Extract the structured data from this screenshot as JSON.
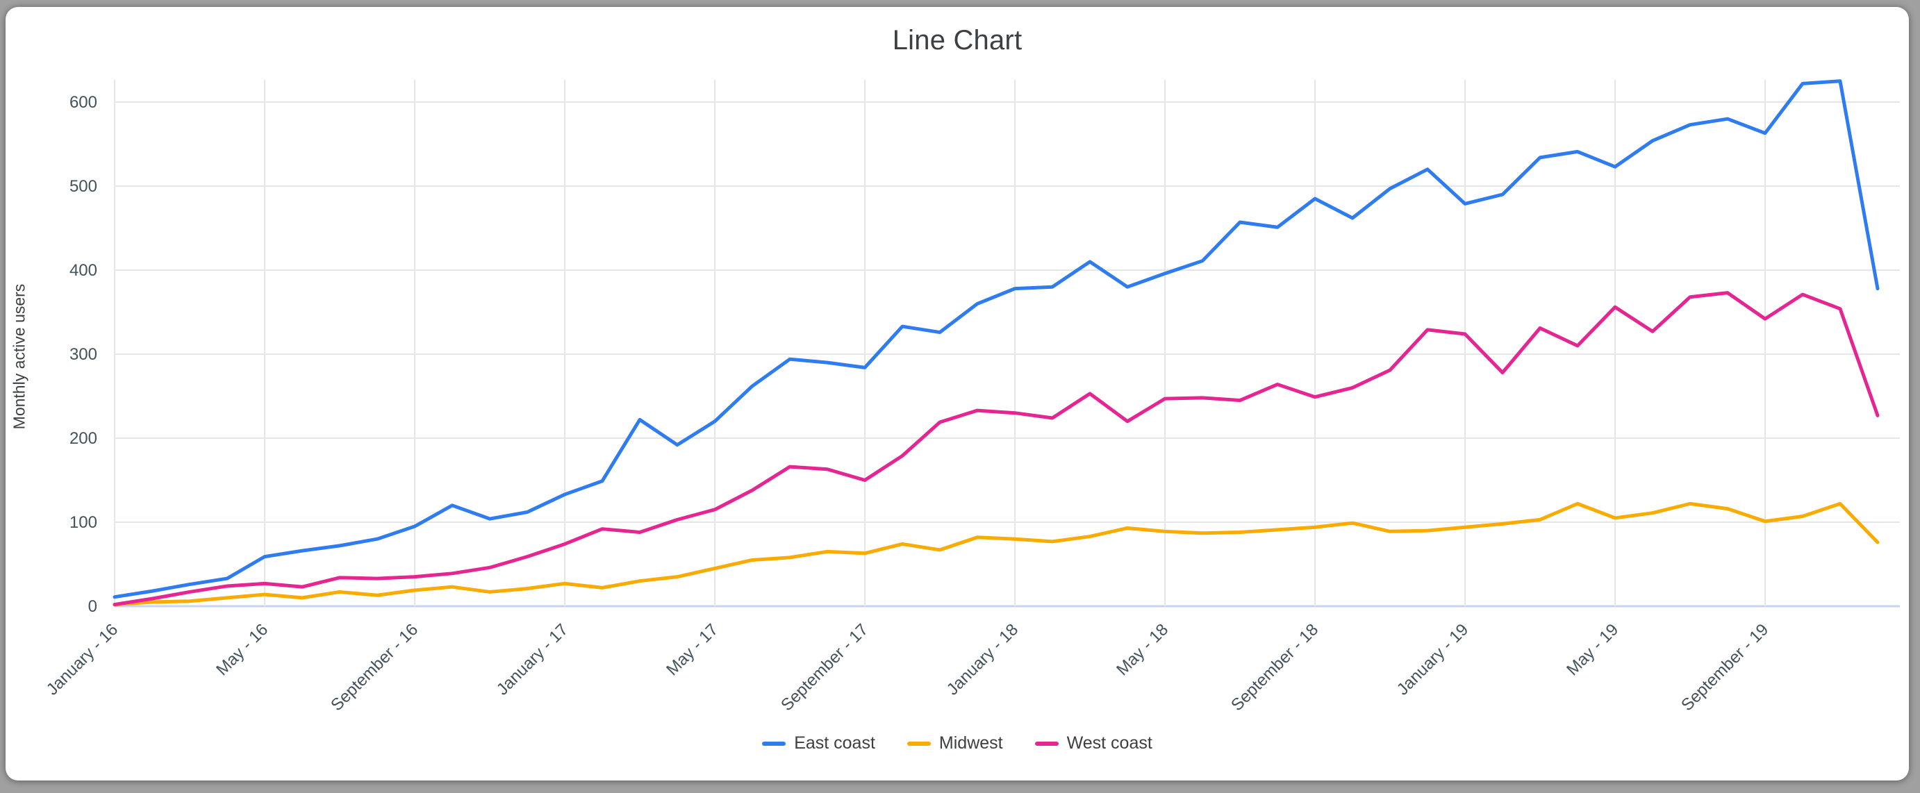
{
  "chart_data": {
    "type": "line",
    "title": "Line Chart",
    "xlabel": "",
    "ylabel": "Monthly active users",
    "ylim": [
      0,
      650
    ],
    "yticks": [
      0,
      100,
      200,
      300,
      400,
      500,
      600
    ],
    "grid": true,
    "legend_position": "bottom",
    "x_tick_labels": [
      "January - 16",
      "May - 16",
      "September - 16",
      "January - 17",
      "May - 17",
      "September - 17",
      "January - 18",
      "May - 18",
      "September - 18",
      "January - 19",
      "May - 19",
      "September - 19"
    ],
    "label_every": 4,
    "months": [
      "2016-01",
      "2016-02",
      "2016-03",
      "2016-04",
      "2016-05",
      "2016-06",
      "2016-07",
      "2016-08",
      "2016-09",
      "2016-10",
      "2016-11",
      "2016-12",
      "2017-01",
      "2017-02",
      "2017-03",
      "2017-04",
      "2017-05",
      "2017-06",
      "2017-07",
      "2017-08",
      "2017-09",
      "2017-10",
      "2017-11",
      "2017-12",
      "2018-01",
      "2018-02",
      "2018-03",
      "2018-04",
      "2018-05",
      "2018-06",
      "2018-07",
      "2018-08",
      "2018-09",
      "2018-10",
      "2018-11",
      "2018-12",
      "2019-01",
      "2019-02",
      "2019-03",
      "2019-04",
      "2019-05",
      "2019-06",
      "2019-07",
      "2019-08",
      "2019-09",
      "2019-10",
      "2019-11",
      "2019-12"
    ],
    "series": [
      {
        "name": "East coast",
        "color": "#2E7CF0",
        "values": [
          11,
          18,
          26,
          33,
          59,
          66,
          72,
          80,
          95,
          120,
          104,
          112,
          133,
          149,
          222,
          192,
          220,
          262,
          294,
          290,
          284,
          333,
          326,
          360,
          378,
          380,
          410,
          380,
          396,
          411,
          457,
          451,
          485,
          462,
          497,
          520,
          479,
          490,
          534,
          541,
          523,
          554,
          573,
          580,
          563,
          622,
          625,
          378
        ]
      },
      {
        "name": "Midwest",
        "color": "#F9AB00",
        "values": [
          2,
          5,
          6,
          10,
          14,
          10,
          17,
          13,
          19,
          23,
          17,
          21,
          27,
          22,
          30,
          35,
          45,
          55,
          58,
          65,
          63,
          74,
          67,
          82,
          80,
          77,
          83,
          93,
          89,
          87,
          88,
          91,
          94,
          99,
          89,
          90,
          94,
          98,
          103,
          122,
          105,
          111,
          122,
          116,
          101,
          107,
          122,
          76
        ]
      },
      {
        "name": "West coast",
        "color": "#E52592",
        "values": [
          2,
          9,
          17,
          24,
          27,
          23,
          34,
          33,
          35,
          39,
          46,
          59,
          74,
          92,
          88,
          103,
          115,
          138,
          166,
          163,
          150,
          179,
          219,
          233,
          230,
          224,
          253,
          220,
          247,
          248,
          245,
          264,
          249,
          260,
          281,
          329,
          324,
          278,
          331,
          310,
          356,
          327,
          368,
          373,
          342,
          371,
          354,
          227
        ]
      }
    ]
  }
}
